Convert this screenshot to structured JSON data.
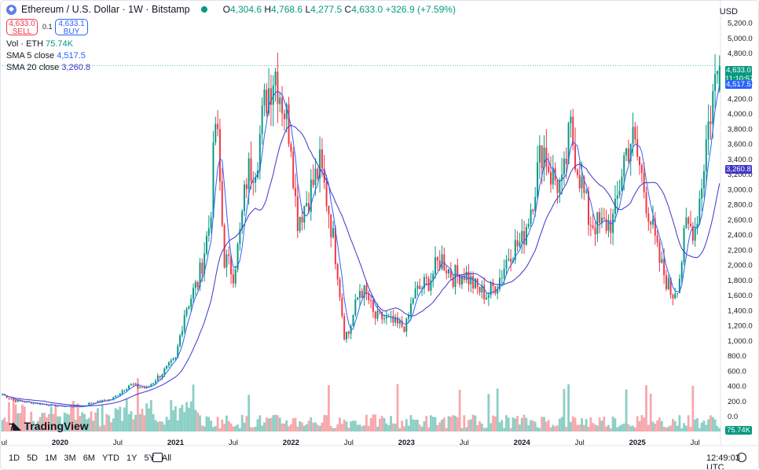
{
  "header": {
    "symbol_icon": "ethereum-icon",
    "title": "Ethereum / U.S. Dollar · 1W · Bitstamp",
    "o_label": "O",
    "o_value": "4,304.6",
    "h_label": "H",
    "h_value": "4,768.6",
    "l_label": "L",
    "l_value": "4,277.5",
    "c_label": "C",
    "c_value": "4,633.0",
    "change": "+326.9 (+7.59%)",
    "sell_price": "4,633.0",
    "sell_label": "SELL",
    "spread": "0.1",
    "buy_price": "4,633.1",
    "buy_label": "BUY"
  },
  "indicators": {
    "vol_label": "Vol · ETH",
    "vol_value": "75.74K",
    "sma5_label": "SMA 5 close",
    "sma5_value": "4,517.5",
    "sma20_label": "SMA 20 close",
    "sma20_value": "3,260.8"
  },
  "currency": "USD",
  "price_tags": {
    "last": "4,633.0",
    "countdown": "11:10:57",
    "sma5": "4,517.5",
    "sma20": "3,260.8",
    "volume": "75.74K"
  },
  "colors": {
    "up": "#089981",
    "down": "#f23645",
    "sma5": "#2962ff",
    "sma20": "#3f33c7",
    "vol_up": "#8ccfc5",
    "vol_down": "#f7a8ad"
  },
  "timeframes": [
    "1D",
    "5D",
    "1M",
    "3M",
    "6M",
    "YTD",
    "1Y",
    "5Y",
    "All"
  ],
  "clock": "12:49:03 UTC",
  "branding": "TradingView",
  "chart_data": {
    "type": "candlestick",
    "interval": "1W",
    "y_ticks": [
      "-200.0",
      "0.0",
      "200.0",
      "400.0",
      "600.0",
      "800.0",
      "1,000.0",
      "1,200.0",
      "1,400.0",
      "1,600.0",
      "1,800.0",
      "2,000.0",
      "2,200.0",
      "2,400.0",
      "2,600.0",
      "2,800.0",
      "3,000.0",
      "3,200.0",
      "3,400.0",
      "3,600.0",
      "3,800.0",
      "4,000.0",
      "4,200.0",
      "4,400.0",
      "4,800.0",
      "5,000.0",
      "5,200.0"
    ],
    "ylim": [
      -200,
      5200
    ],
    "x_ticks": [
      {
        "label": "Jul",
        "t": 2019.5
      },
      {
        "label": "2020",
        "t": 2020.0
      },
      {
        "label": "Jul",
        "t": 2020.5
      },
      {
        "label": "2021",
        "t": 2021.0
      },
      {
        "label": "Jul",
        "t": 2021.5
      },
      {
        "label": "2022",
        "t": 2022.0
      },
      {
        "label": "Jul",
        "t": 2022.5
      },
      {
        "label": "2023",
        "t": 2023.0
      },
      {
        "label": "Jul",
        "t": 2023.5
      },
      {
        "label": "2024",
        "t": 2024.0
      },
      {
        "label": "Jul",
        "t": 2024.5
      },
      {
        "label": "2025",
        "t": 2025.0
      },
      {
        "label": "Jul",
        "t": 2025.5
      }
    ],
    "x_range": [
      2019.5,
      2025.72
    ],
    "close_anchors": [
      [
        2019.5,
        290
      ],
      [
        2019.6,
        210
      ],
      [
        2019.75,
        180
      ],
      [
        2019.9,
        150
      ],
      [
        2020.0,
        135
      ],
      [
        2020.2,
        130
      ],
      [
        2020.25,
        170
      ],
      [
        2020.45,
        230
      ],
      [
        2020.6,
        420
      ],
      [
        2020.75,
        370
      ],
      [
        2020.9,
        600
      ],
      [
        2021.0,
        750
      ],
      [
        2021.08,
        1400
      ],
      [
        2021.2,
        1800
      ],
      [
        2021.3,
        2600
      ],
      [
        2021.35,
        4000
      ],
      [
        2021.42,
        2100
      ],
      [
        2021.5,
        1900
      ],
      [
        2021.55,
        2300
      ],
      [
        2021.62,
        3200
      ],
      [
        2021.7,
        3400
      ],
      [
        2021.78,
        4200
      ],
      [
        2021.86,
        4600
      ],
      [
        2021.92,
        4200
      ],
      [
        2022.0,
        3700
      ],
      [
        2022.05,
        2600
      ],
      [
        2022.12,
        2800
      ],
      [
        2022.25,
        3300
      ],
      [
        2022.32,
        2800
      ],
      [
        2022.4,
        2000
      ],
      [
        2022.46,
        1100
      ],
      [
        2022.5,
        1100
      ],
      [
        2022.6,
        1700
      ],
      [
        2022.67,
        1550
      ],
      [
        2022.72,
        1300
      ],
      [
        2022.8,
        1300
      ],
      [
        2022.92,
        1200
      ],
      [
        2023.0,
        1200
      ],
      [
        2023.06,
        1600
      ],
      [
        2023.2,
        1800
      ],
      [
        2023.3,
        2100
      ],
      [
        2023.4,
        1850
      ],
      [
        2023.5,
        1900
      ],
      [
        2023.6,
        1700
      ],
      [
        2023.7,
        1600
      ],
      [
        2023.8,
        1800
      ],
      [
        2023.9,
        2200
      ],
      [
        2024.0,
        2300
      ],
      [
        2024.08,
        2800
      ],
      [
        2024.18,
        3600
      ],
      [
        2024.25,
        3200
      ],
      [
        2024.35,
        3000
      ],
      [
        2024.42,
        3800
      ],
      [
        2024.5,
        3200
      ],
      [
        2024.58,
        2600
      ],
      [
        2024.68,
        2500
      ],
      [
        2024.8,
        2600
      ],
      [
        2024.88,
        3400
      ],
      [
        2024.95,
        3700
      ],
      [
        2025.02,
        3300
      ],
      [
        2025.1,
        2700
      ],
      [
        2025.18,
        2100
      ],
      [
        2025.25,
        1800
      ],
      [
        2025.3,
        1600
      ],
      [
        2025.36,
        1800
      ],
      [
        2025.42,
        2500
      ],
      [
        2025.5,
        2500
      ],
      [
        2025.55,
        3000
      ],
      [
        2025.6,
        3700
      ],
      [
        2025.66,
        4300
      ],
      [
        2025.7,
        4633
      ]
    ],
    "last": {
      "open": 4304.6,
      "high": 4768.6,
      "low": 4277.5,
      "close": 4633.0
    }
  }
}
